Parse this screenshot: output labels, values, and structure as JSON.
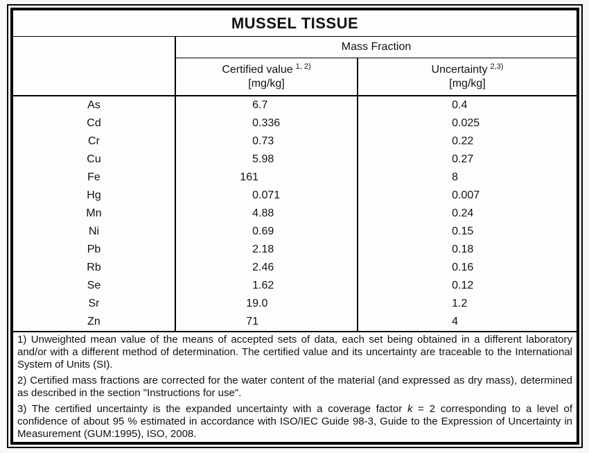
{
  "palette": {
    "page_background": "#f8f8f8",
    "sheet_background": "#fdfdfd",
    "border": "#000000",
    "text": "#111111"
  },
  "title": "MUSSEL TISSUE",
  "table": {
    "group_header": "Mass Fraction",
    "columns": [
      {
        "label": "Certified value",
        "superscript": "1, 2)",
        "unit": "[mg/kg]"
      },
      {
        "label": "Uncertainty",
        "superscript": "2,3)",
        "unit": "[mg/kg]"
      }
    ],
    "rows": [
      {
        "element": "As",
        "certified_value": "6.7",
        "uncertainty": "0.4"
      },
      {
        "element": "Cd",
        "certified_value": "0.336",
        "uncertainty": "0.025"
      },
      {
        "element": "Cr",
        "certified_value": "0.73",
        "uncertainty": "0.22"
      },
      {
        "element": "Cu",
        "certified_value": "5.98",
        "uncertainty": "0.27"
      },
      {
        "element": "Fe",
        "certified_value": "161",
        "uncertainty": "8"
      },
      {
        "element": "Hg",
        "certified_value": "0.071",
        "uncertainty": "0.007"
      },
      {
        "element": "Mn",
        "certified_value": "4.88",
        "uncertainty": "0.24"
      },
      {
        "element": "Ni",
        "certified_value": "0.69",
        "uncertainty": "0.15"
      },
      {
        "element": "Pb",
        "certified_value": "2.18",
        "uncertainty": "0.18"
      },
      {
        "element": "Rb",
        "certified_value": "2.46",
        "uncertainty": "0.16"
      },
      {
        "element": "Se",
        "certified_value": "1.62",
        "uncertainty": "0.12"
      },
      {
        "element": "Sr",
        "certified_value": "19.0",
        "uncertainty": "1.2"
      },
      {
        "element": "Zn",
        "certified_value": "71",
        "uncertainty": "4"
      }
    ]
  },
  "footnotes": [
    {
      "marker": "1)",
      "parts": [
        {
          "text": "Unweighted mean value of the means of accepted sets of data, each set being obtained in a different laboratory and/or with a different method of determination. The certified value and its uncertainty are traceable to the International System of Units (SI).",
          "italic": false
        }
      ]
    },
    {
      "marker": "2)",
      "parts": [
        {
          "text": "Certified mass fractions are corrected for the water content of the material (and expressed as dry mass), determined as described in the section \"Instructions for use\".",
          "italic": false
        }
      ]
    },
    {
      "marker": "3)",
      "parts": [
        {
          "text": "The certified uncertainty is the expanded uncertainty with a coverage factor ",
          "italic": false
        },
        {
          "text": "k",
          "italic": true
        },
        {
          "text": " = 2 corresponding to a level of confidence of about 95 % estimated in accordance with ISO/IEC Guide 98-3, Guide to the Expression of Uncertainty in Measurement (GUM:1995), ISO, 2008.",
          "italic": false
        }
      ]
    }
  ]
}
